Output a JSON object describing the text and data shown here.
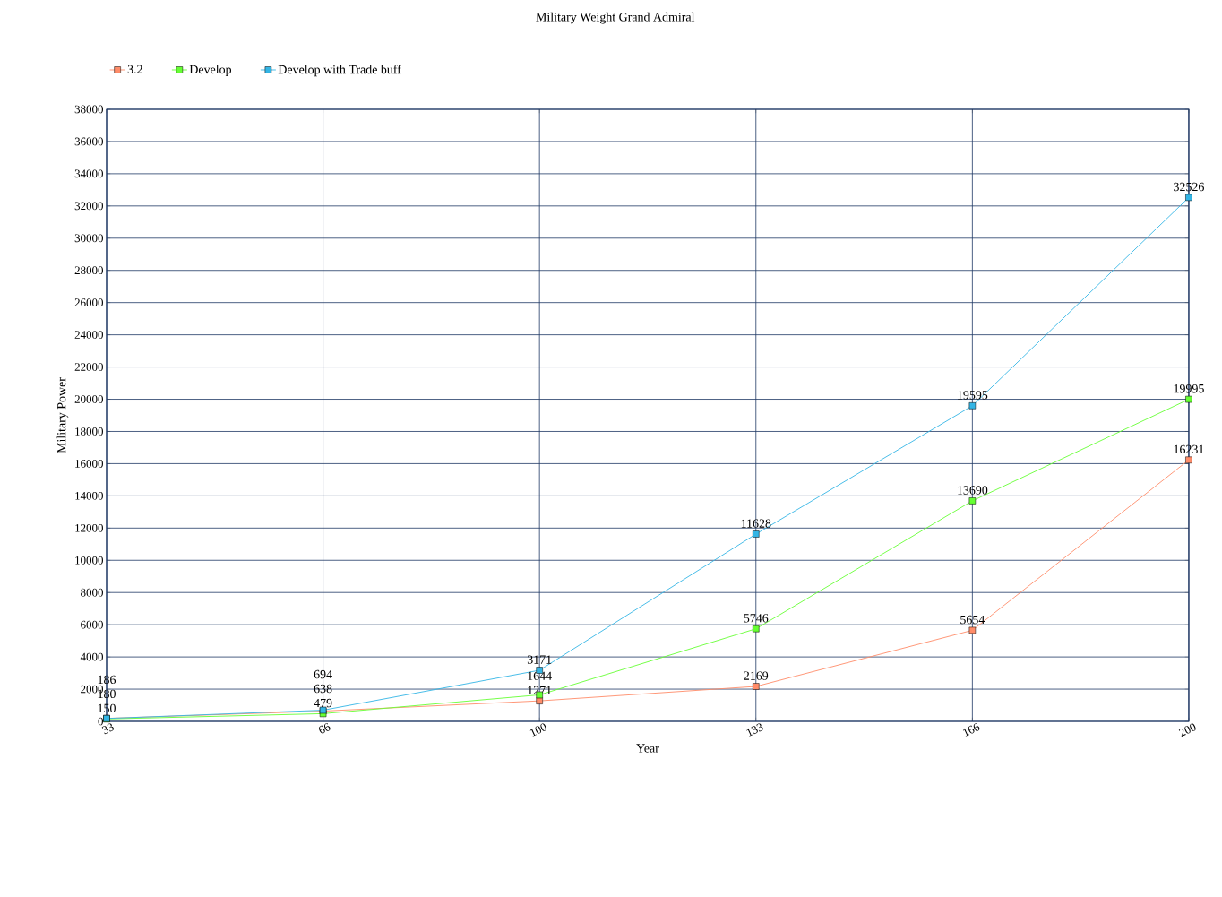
{
  "chart_data": {
    "type": "line",
    "title": "Military Weight Grand Admiral",
    "xlabel": "Year",
    "ylabel": "Military Power",
    "categories": [
      "33",
      "66",
      "100",
      "133",
      "166",
      "200"
    ],
    "series": [
      {
        "name": "3.2",
        "color": "#ff8c69",
        "values": [
          186,
          638,
          1271,
          2169,
          5654,
          16231
        ]
      },
      {
        "name": "Develop",
        "color": "#66ff33",
        "values": [
          150,
          479,
          1644,
          5746,
          13690,
          19995
        ]
      },
      {
        "name": "Develop with Trade buff",
        "color": "#33b5e5",
        "values": [
          180,
          694,
          3171,
          11628,
          19595,
          32526
        ]
      }
    ],
    "ylim": [
      0,
      38000
    ],
    "yticks": [
      0,
      2000,
      4000,
      6000,
      8000,
      10000,
      12000,
      14000,
      16000,
      18000,
      20000,
      22000,
      24000,
      26000,
      28000,
      30000,
      32000,
      34000,
      36000,
      38000
    ],
    "grid": true,
    "legend": "top left",
    "marker": "square",
    "data_labels": true
  }
}
